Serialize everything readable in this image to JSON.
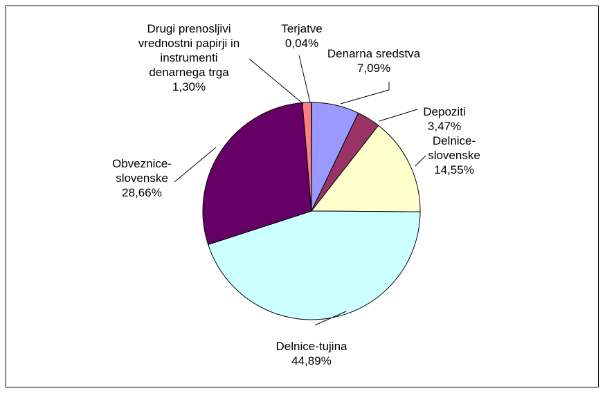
{
  "chart_data": {
    "type": "pie",
    "title": "",
    "legend": "none",
    "slices": [
      {
        "label": [
          "Denarna sredstva"
        ],
        "pct_text": "7,09%",
        "value": 7.09,
        "color": "#9999ff"
      },
      {
        "label": [
          "Depoziti"
        ],
        "pct_text": "3,47%",
        "value": 3.47,
        "color": "#993366"
      },
      {
        "label": [
          "Delnice-",
          "slovenske"
        ],
        "pct_text": "14,55%",
        "value": 14.55,
        "color": "#ffffcc"
      },
      {
        "label": [
          "Delnice-tujina"
        ],
        "pct_text": "44,89%",
        "value": 44.89,
        "color": "#ccffff"
      },
      {
        "label": [
          "Obveznice-",
          "slovenske"
        ],
        "pct_text": "28,66%",
        "value": 28.66,
        "color": "#660066"
      },
      {
        "label": [
          "Drugi prenosljivi",
          "vrednostni papirji in",
          "instrumenti",
          "denarnega trga"
        ],
        "pct_text": "1,30%",
        "value": 1.3,
        "color": "#ff8080"
      },
      {
        "label": [
          "Terjatve"
        ],
        "pct_text": "0,04%",
        "value": 0.04,
        "color": "#0066cc"
      }
    ]
  }
}
